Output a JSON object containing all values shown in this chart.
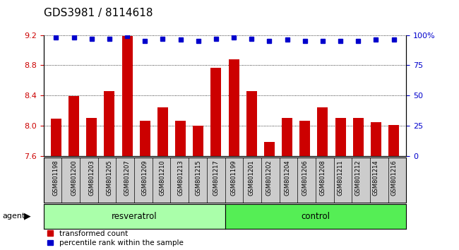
{
  "title": "GDS3981 / 8114618",
  "samples": [
    "GSM801198",
    "GSM801200",
    "GSM801203",
    "GSM801205",
    "GSM801207",
    "GSM801209",
    "GSM801210",
    "GSM801213",
    "GSM801215",
    "GSM801217",
    "GSM801199",
    "GSM801201",
    "GSM801202",
    "GSM801204",
    "GSM801206",
    "GSM801208",
    "GSM801211",
    "GSM801212",
    "GSM801214",
    "GSM801216"
  ],
  "transformed_count": [
    8.1,
    8.39,
    8.11,
    8.46,
    9.19,
    8.07,
    8.25,
    8.07,
    8.0,
    8.77,
    8.88,
    8.46,
    7.79,
    8.11,
    8.07,
    8.25,
    8.11,
    8.11,
    8.05,
    8.01
  ],
  "percentile_rank": [
    98,
    98,
    97,
    97,
    99,
    95,
    97,
    96,
    95,
    97,
    98,
    97,
    95,
    96,
    95,
    95,
    95,
    95,
    96,
    96
  ],
  "group_labels": [
    "resveratrol",
    "control"
  ],
  "group_sizes": [
    10,
    10
  ],
  "ylim_left": [
    7.6,
    9.2
  ],
  "ylim_right": [
    0,
    100
  ],
  "bar_color": "#cc0000",
  "dot_color": "#0000cc",
  "resveratrol_color": "#aaffaa",
  "control_color": "#55ee55",
  "agent_label": "agent",
  "legend1_label": "transformed count",
  "legend2_label": "percentile rank within the sample",
  "left_tick_color": "#cc0000",
  "right_tick_color": "#0000cc",
  "tick_fontsize": 8,
  "title_fontsize": 11,
  "bar_width": 0.6,
  "xtick_fontsize": 6.0,
  "dot_size": 4
}
